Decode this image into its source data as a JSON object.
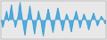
{
  "chart_data": {
    "type": "area",
    "values": [
      0,
      -5,
      -15,
      -8,
      2,
      10,
      18,
      8,
      -2,
      5,
      20,
      30,
      15,
      2,
      -5,
      -15,
      -8,
      2,
      8,
      25,
      35,
      18,
      5,
      -8,
      -20,
      -30,
      -15,
      -3,
      5,
      15,
      28,
      16,
      3,
      -5,
      -18,
      -28,
      -14,
      -2,
      6,
      18,
      10,
      2,
      -8,
      -22,
      -32,
      -18,
      -5,
      3,
      12,
      22,
      14,
      3,
      -5,
      -15,
      -25,
      -14,
      -2,
      5,
      14,
      24,
      16,
      5,
      -5,
      -12,
      -22,
      -14,
      -3,
      4,
      12,
      8,
      2,
      -5,
      -15,
      -24,
      -14,
      -4,
      4,
      10,
      18,
      10,
      2,
      -6,
      -16,
      -10,
      -2,
      5,
      12,
      8,
      2,
      -5,
      -12,
      -20,
      -14,
      -5,
      2,
      8,
      14,
      8,
      2,
      -5,
      -12,
      -8,
      -2,
      3,
      8,
      5,
      2,
      -3,
      -8,
      -5
    ],
    "color": "#3a9fd8",
    "ylim": [
      -38,
      38
    ],
    "tick_labels": false,
    "grid": false
  }
}
